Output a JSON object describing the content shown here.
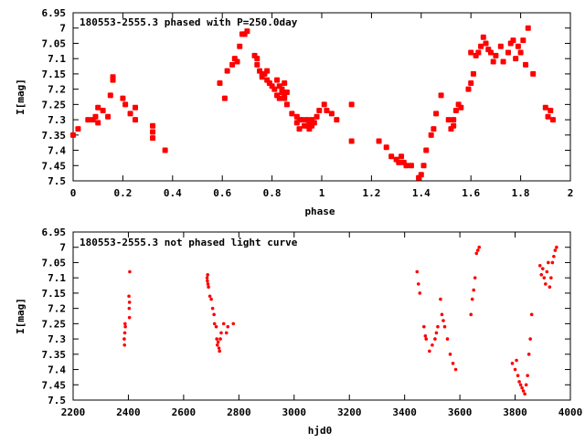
{
  "chart_data": [
    {
      "type": "scatter",
      "title": "180553-2555.3 phased with P=250.0day",
      "xlabel": "phase",
      "ylabel": "I[mag]",
      "xlim": [
        0,
        2
      ],
      "ylim": [
        6.95,
        7.5
      ],
      "y_inverted": true,
      "grid": false,
      "marker_color": "#ff0000",
      "x_ticks": [
        "0",
        "0.2",
        "0.4",
        "0.6",
        "0.8",
        "1",
        "1.2",
        "1.4",
        "1.6",
        "1.8",
        "2"
      ],
      "y_ticks": [
        "6.95",
        "7",
        "7.05",
        "7.1",
        "7.15",
        "7.2",
        "7.25",
        "7.3",
        "7.35",
        "7.4",
        "7.45",
        "7.5"
      ],
      "points": [
        [
          0.0,
          7.35
        ],
        [
          0.02,
          7.33
        ],
        [
          0.06,
          7.3
        ],
        [
          0.08,
          7.3
        ],
        [
          0.09,
          7.29
        ],
        [
          0.1,
          7.31
        ],
        [
          0.1,
          7.26
        ],
        [
          0.12,
          7.27
        ],
        [
          0.14,
          7.29
        ],
        [
          0.15,
          7.22
        ],
        [
          0.16,
          7.17
        ],
        [
          0.16,
          7.16
        ],
        [
          0.2,
          7.23
        ],
        [
          0.21,
          7.25
        ],
        [
          0.23,
          7.28
        ],
        [
          0.25,
          7.3
        ],
        [
          0.25,
          7.26
        ],
        [
          0.32,
          7.32
        ],
        [
          0.32,
          7.34
        ],
        [
          0.32,
          7.36
        ],
        [
          0.37,
          7.4
        ],
        [
          0.59,
          7.18
        ],
        [
          0.61,
          7.23
        ],
        [
          0.62,
          7.14
        ],
        [
          0.64,
          7.12
        ],
        [
          0.65,
          7.1
        ],
        [
          0.66,
          7.11
        ],
        [
          0.67,
          7.06
        ],
        [
          0.68,
          7.02
        ],
        [
          0.69,
          7.02
        ],
        [
          0.7,
          7.01
        ],
        [
          0.73,
          7.09
        ],
        [
          0.74,
          7.1
        ],
        [
          0.74,
          7.12
        ],
        [
          0.75,
          7.14
        ],
        [
          0.76,
          7.16
        ],
        [
          0.77,
          7.15
        ],
        [
          0.78,
          7.14
        ],
        [
          0.76,
          7.15
        ],
        [
          0.78,
          7.17
        ],
        [
          0.79,
          7.18
        ],
        [
          0.8,
          7.19
        ],
        [
          0.81,
          7.2
        ],
        [
          0.82,
          7.17
        ],
        [
          0.83,
          7.19
        ],
        [
          0.84,
          7.21
        ],
        [
          0.85,
          7.22
        ],
        [
          0.83,
          7.23
        ],
        [
          0.84,
          7.2
        ],
        [
          0.85,
          7.18
        ],
        [
          0.86,
          7.21
        ],
        [
          0.82,
          7.22
        ],
        [
          0.85,
          7.23
        ],
        [
          0.86,
          7.25
        ],
        [
          0.88,
          7.28
        ],
        [
          0.9,
          7.29
        ],
        [
          0.9,
          7.31
        ],
        [
          0.91,
          7.3
        ],
        [
          0.91,
          7.33
        ],
        [
          0.92,
          7.3
        ],
        [
          0.93,
          7.32
        ],
        [
          0.94,
          7.3
        ],
        [
          0.94,
          7.32
        ],
        [
          0.95,
          7.31
        ],
        [
          0.95,
          7.33
        ],
        [
          0.96,
          7.32
        ],
        [
          0.96,
          7.3
        ],
        [
          0.97,
          7.31
        ],
        [
          0.98,
          7.29
        ],
        [
          0.99,
          7.27
        ],
        [
          1.01,
          7.25
        ],
        [
          1.02,
          7.27
        ],
        [
          1.04,
          7.28
        ],
        [
          1.06,
          7.3
        ],
        [
          1.12,
          7.25
        ],
        [
          1.12,
          7.37
        ],
        [
          1.23,
          7.37
        ],
        [
          1.26,
          7.39
        ],
        [
          1.28,
          7.42
        ],
        [
          1.3,
          7.43
        ],
        [
          1.31,
          7.44
        ],
        [
          1.32,
          7.42
        ],
        [
          1.33,
          7.44
        ],
        [
          1.34,
          7.45
        ],
        [
          1.36,
          7.45
        ],
        [
          1.39,
          7.49
        ],
        [
          1.4,
          7.48
        ],
        [
          1.41,
          7.45
        ],
        [
          1.42,
          7.4
        ],
        [
          1.44,
          7.35
        ],
        [
          1.45,
          7.33
        ],
        [
          1.46,
          7.28
        ],
        [
          1.48,
          7.22
        ],
        [
          1.51,
          7.3
        ],
        [
          1.52,
          7.33
        ],
        [
          1.53,
          7.32
        ],
        [
          1.53,
          7.3
        ],
        [
          1.54,
          7.27
        ],
        [
          1.55,
          7.25
        ],
        [
          1.56,
          7.26
        ],
        [
          1.59,
          7.2
        ],
        [
          1.6,
          7.18
        ],
        [
          1.61,
          7.15
        ],
        [
          1.6,
          7.08
        ],
        [
          1.62,
          7.09
        ],
        [
          1.63,
          7.08
        ],
        [
          1.64,
          7.06
        ],
        [
          1.65,
          7.03
        ],
        [
          1.66,
          7.05
        ],
        [
          1.67,
          7.07
        ],
        [
          1.68,
          7.08
        ],
        [
          1.69,
          7.11
        ],
        [
          1.7,
          7.09
        ],
        [
          1.72,
          7.06
        ],
        [
          1.73,
          7.11
        ],
        [
          1.75,
          7.08
        ],
        [
          1.76,
          7.05
        ],
        [
          1.77,
          7.04
        ],
        [
          1.78,
          7.1
        ],
        [
          1.79,
          7.06
        ],
        [
          1.8,
          7.08
        ],
        [
          1.81,
          7.04
        ],
        [
          1.82,
          7.12
        ],
        [
          1.83,
          7.0
        ],
        [
          1.85,
          7.15
        ],
        [
          1.9,
          7.26
        ],
        [
          1.91,
          7.29
        ],
        [
          1.92,
          7.27
        ],
        [
          1.93,
          7.3
        ]
      ]
    },
    {
      "type": "scatter",
      "title": "180553-2555.3 not phased light curve",
      "xlabel": "hjd0",
      "ylabel": "I[mag]",
      "xlim": [
        2200,
        4000
      ],
      "ylim": [
        6.95,
        7.5
      ],
      "y_inverted": true,
      "grid": false,
      "marker_color": "#ff0000",
      "x_ticks": [
        "2200",
        "2400",
        "2600",
        "2800",
        "3000",
        "3200",
        "3400",
        "3600",
        "3800",
        "4000"
      ],
      "y_ticks": [
        "6.95",
        "7",
        "7.05",
        "7.1",
        "7.15",
        "7.2",
        "7.25",
        "7.3",
        "7.35",
        "7.4",
        "7.45",
        "7.5"
      ],
      "points": [
        [
          2385,
          7.3
        ],
        [
          2386,
          7.32
        ],
        [
          2387,
          7.28
        ],
        [
          2388,
          7.25
        ],
        [
          2389,
          7.26
        ],
        [
          2402,
          7.16
        ],
        [
          2403,
          7.2
        ],
        [
          2404,
          7.18
        ],
        [
          2405,
          7.08
        ],
        [
          2404,
          7.23
        ],
        [
          2685,
          7.1
        ],
        [
          2686,
          7.11
        ],
        [
          2687,
          7.09
        ],
        [
          2688,
          7.12
        ],
        [
          2690,
          7.13
        ],
        [
          2695,
          7.16
        ],
        [
          2700,
          7.17
        ],
        [
          2705,
          7.2
        ],
        [
          2710,
          7.22
        ],
        [
          2712,
          7.25
        ],
        [
          2718,
          7.26
        ],
        [
          2720,
          7.3
        ],
        [
          2722,
          7.32
        ],
        [
          2725,
          7.31
        ],
        [
          2728,
          7.33
        ],
        [
          2730,
          7.34
        ],
        [
          2733,
          7.3
        ],
        [
          2736,
          7.28
        ],
        [
          2745,
          7.25
        ],
        [
          2755,
          7.28
        ],
        [
          2760,
          7.26
        ],
        [
          2780,
          7.25
        ],
        [
          3445,
          7.08
        ],
        [
          3450,
          7.12
        ],
        [
          3455,
          7.15
        ],
        [
          3470,
          7.26
        ],
        [
          3475,
          7.29
        ],
        [
          3478,
          7.3
        ],
        [
          3490,
          7.34
        ],
        [
          3500,
          7.32
        ],
        [
          3510,
          7.3
        ],
        [
          3515,
          7.28
        ],
        [
          3520,
          7.26
        ],
        [
          3530,
          7.17
        ],
        [
          3535,
          7.22
        ],
        [
          3540,
          7.24
        ],
        [
          3545,
          7.26
        ],
        [
          3555,
          7.3
        ],
        [
          3565,
          7.35
        ],
        [
          3575,
          7.38
        ],
        [
          3585,
          7.4
        ],
        [
          3640,
          7.22
        ],
        [
          3645,
          7.17
        ],
        [
          3650,
          7.14
        ],
        [
          3655,
          7.1
        ],
        [
          3660,
          7.02
        ],
        [
          3665,
          7.01
        ],
        [
          3670,
          7.0
        ],
        [
          3790,
          7.38
        ],
        [
          3800,
          7.4
        ],
        [
          3805,
          7.37
        ],
        [
          3810,
          7.42
        ],
        [
          3815,
          7.44
        ],
        [
          3820,
          7.45
        ],
        [
          3825,
          7.46
        ],
        [
          3830,
          7.47
        ],
        [
          3835,
          7.48
        ],
        [
          3840,
          7.45
        ],
        [
          3845,
          7.42
        ],
        [
          3850,
          7.35
        ],
        [
          3855,
          7.3
        ],
        [
          3860,
          7.22
        ],
        [
          3890,
          7.06
        ],
        [
          3895,
          7.09
        ],
        [
          3900,
          7.07
        ],
        [
          3905,
          7.1
        ],
        [
          3910,
          7.12
        ],
        [
          3915,
          7.08
        ],
        [
          3920,
          7.05
        ],
        [
          3925,
          7.13
        ],
        [
          3930,
          7.1
        ],
        [
          3935,
          7.05
        ],
        [
          3940,
          7.03
        ],
        [
          3945,
          7.01
        ],
        [
          3950,
          7.0
        ]
      ]
    }
  ]
}
